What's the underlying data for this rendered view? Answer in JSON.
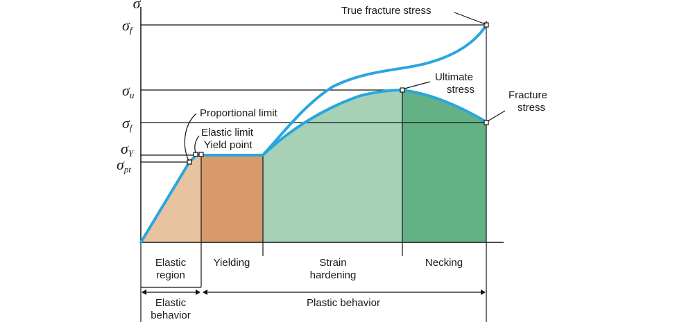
{
  "axis": {
    "y_symbol": "σ"
  },
  "stress_levels": [
    {
      "base": "σ",
      "sub": "f"
    },
    {
      "base": "σ",
      "sub": "u"
    },
    {
      "base": "σ",
      "sub": "f"
    },
    {
      "base": "σ",
      "sub": "Y"
    },
    {
      "base": "σ",
      "sub": "pt"
    }
  ],
  "callouts": {
    "true_fracture_stress": "True fracture stress",
    "ultimate_stress": [
      "Ultimate",
      "stress"
    ],
    "fracture_stress": [
      "Fracture",
      "stress"
    ],
    "proportional_limit": "Proportional limit",
    "elastic_limit": "Elastic limit",
    "yield_point": "Yield point"
  },
  "regions": [
    {
      "name": "elastic",
      "lines": [
        "Elastic",
        "region"
      ],
      "color": "#e8c3a0"
    },
    {
      "name": "yielding",
      "lines": [
        "Yielding"
      ],
      "color": "#d89a6b"
    },
    {
      "name": "strain-hardening",
      "lines": [
        "Strain",
        "hardening"
      ],
      "color": "#a7d1b7"
    },
    {
      "name": "necking",
      "lines": [
        "Necking"
      ],
      "color": "#63b184"
    }
  ],
  "behaviors": [
    {
      "name": "elastic",
      "lines": [
        "Elastic",
        "behavior"
      ]
    },
    {
      "name": "plastic",
      "lines": [
        "Plastic behavior"
      ]
    }
  ],
  "colors": {
    "curve": "#2aa6df",
    "axis": "#111111"
  }
}
